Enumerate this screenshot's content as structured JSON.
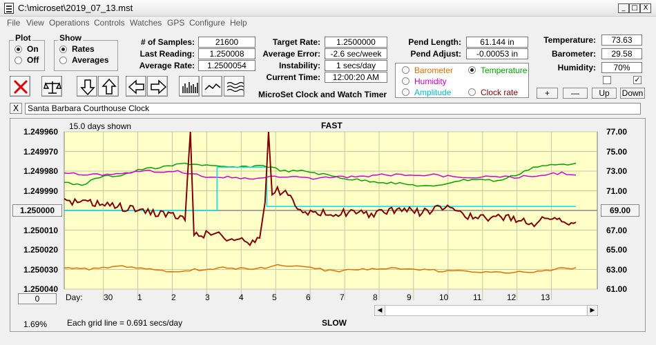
{
  "window": {
    "title": "C:\\microset\\2019_07_13.mst",
    "min_label": "_",
    "max_label": "□",
    "close_label": "X"
  },
  "menu": [
    "File",
    "View",
    "Operations",
    "Controls",
    "Watches",
    "GPS",
    "Configure",
    "Help"
  ],
  "plot": {
    "title": "Plot",
    "on_label": "On",
    "off_label": "Off",
    "selected": "On"
  },
  "show": {
    "title": "Show",
    "rates_label": "Rates",
    "averages_label": "Averages",
    "selected": "Rates"
  },
  "stats": {
    "samples_label": "# of Samples:",
    "samples": "21600",
    "last_reading_label": "Last Reading:",
    "last_reading": "1.250008",
    "average_rate_label": "Average Rate:",
    "average_rate": "1.2500054",
    "target_rate_label": "Target Rate:",
    "target_rate": "1.2500000",
    "average_error_label": "Average Error:",
    "average_error": "-2.6 sec/week",
    "instability_label": "Instability:",
    "instability": "1 secs/day",
    "current_time_label": "Current Time:",
    "current_time": "12:00:20 AM",
    "pend_length_label": "Pend Length:",
    "pend_length": "61.144 in",
    "pend_adjust_label": "Pend Adjust:",
    "pend_adjust": "-0.00053 in",
    "temperature_label": "Temperature:",
    "temperature": "73.63",
    "barometer_label": "Barometer:",
    "barometer": "29.58",
    "humidity_label": "Humidity:",
    "humidity": "70%"
  },
  "app_caption": "MicroSet Clock and Watch Timer",
  "sensor_select": {
    "options": [
      {
        "label": "Barometer",
        "color": "#e07000"
      },
      {
        "label": "Temperature",
        "color": "#00a000"
      },
      {
        "label": "Humidity",
        "color": "#c000c0"
      },
      {
        "label": "Amplitude",
        "color": "#00b8d0"
      },
      {
        "label": "Clock rate",
        "color": "#800000"
      }
    ],
    "selected": "Temperature"
  },
  "adjust_buttons": {
    "plus": "+",
    "minus": "—",
    "up": "Up",
    "down": "Down"
  },
  "checkboxes": {
    "left_checked": false,
    "right_checked": true,
    "check_glyph": "✓"
  },
  "clock": {
    "close_label": "X",
    "name": "Santa Barbara Courthouse Clock"
  },
  "chart_labels": {
    "days_shown": "15.0 days shown",
    "fast": "FAST",
    "slow": "SLOW",
    "grid_note": "Each grid line = 0.691 secs/day",
    "day_prefix": "Day:",
    "center_button": "1.250000",
    "right_button": "69.00",
    "bottom_left_button": "0",
    "percent": "1.69%"
  },
  "chart_data": {
    "type": "line",
    "left_axis_ticks": [
      "1.249960",
      "1.249970",
      "1.249980",
      "1.249990",
      "1.250000",
      "1.250010",
      "1.250020",
      "1.250030",
      "1.250040"
    ],
    "left_ylim": [
      1.24996,
      1.25004
    ],
    "left_axis_reversed": true,
    "right_axis_ticks": [
      "77.00",
      "75.00",
      "73.00",
      "71.00",
      "69.00",
      "67.00",
      "65.00",
      "63.00",
      "61.00"
    ],
    "right_ylim": [
      61,
      77
    ],
    "x_day_ticks": [
      "30",
      "1",
      "2",
      "3",
      "4",
      "5",
      "6",
      "7",
      "8",
      "9",
      "10",
      "11",
      "12",
      "13"
    ],
    "xlim": [
      0,
      15
    ],
    "grid": true,
    "series": [
      {
        "name": "Barometer",
        "color": "#e07000",
        "points": [
          [
            0,
            1.250029
          ],
          [
            0.7,
            1.25003
          ],
          [
            1.5,
            1.250028
          ],
          [
            2.3,
            1.25003
          ],
          [
            3,
            1.250031
          ],
          [
            3.8,
            1.25003
          ],
          [
            4.6,
            1.250029
          ],
          [
            5.3,
            1.25003
          ],
          [
            6,
            1.250028
          ],
          [
            6.8,
            1.250029
          ],
          [
            7.6,
            1.250031
          ],
          [
            8.4,
            1.25003
          ],
          [
            9.2,
            1.250029
          ],
          [
            10,
            1.25003
          ],
          [
            10.8,
            1.250031
          ],
          [
            11.6,
            1.250031
          ],
          [
            12.4,
            1.250032
          ],
          [
            13.2,
            1.250031
          ],
          [
            14.4,
            1.250029
          ]
        ]
      },
      {
        "name": "Temperature",
        "color": "#00a000",
        "points": [
          [
            0,
            1.249986
          ],
          [
            0.5,
            1.249987
          ],
          [
            1,
            1.249983
          ],
          [
            1.6,
            1.249982
          ],
          [
            2.2,
            1.249979
          ],
          [
            2.8,
            1.249978
          ],
          [
            3.4,
            1.249976
          ],
          [
            4.0,
            1.249977
          ],
          [
            4.4,
            1.249978
          ],
          [
            5.0,
            1.249978
          ],
          [
            5.6,
            1.249977
          ],
          [
            6.2,
            1.24998
          ],
          [
            6.8,
            1.24998
          ],
          [
            7.4,
            1.249982
          ],
          [
            8.0,
            1.249984
          ],
          [
            8.6,
            1.249985
          ],
          [
            9.2,
            1.249986
          ],
          [
            9.8,
            1.249987
          ],
          [
            10.4,
            1.249988
          ],
          [
            11.0,
            1.249985
          ],
          [
            11.6,
            1.249984
          ],
          [
            12.2,
            1.249985
          ],
          [
            12.7,
            1.249982
          ],
          [
            13.2,
            1.249978
          ],
          [
            13.7,
            1.249977
          ],
          [
            14.4,
            1.249976
          ]
        ]
      },
      {
        "name": "Humidity",
        "color": "#d000d0",
        "points": [
          [
            0,
            1.249981
          ],
          [
            0.8,
            1.249982
          ],
          [
            1.6,
            1.249981
          ],
          [
            2.4,
            1.24998
          ],
          [
            3.2,
            1.24998
          ],
          [
            4,
            1.249983
          ],
          [
            4.6,
            1.249983
          ],
          [
            5.2,
            1.249984
          ],
          [
            5.8,
            1.249983
          ],
          [
            6.4,
            1.249983
          ],
          [
            7.0,
            1.249984
          ],
          [
            7.6,
            1.249983
          ],
          [
            8.2,
            1.249983
          ],
          [
            8.8,
            1.249982
          ],
          [
            9.6,
            1.249982
          ],
          [
            10.4,
            1.249982
          ],
          [
            11.2,
            1.249983
          ],
          [
            12,
            1.249983
          ],
          [
            12.8,
            1.249983
          ],
          [
            13.3,
            1.249982
          ],
          [
            14.0,
            1.249981
          ],
          [
            14.4,
            1.249982
          ]
        ]
      },
      {
        "name": "Amplitude",
        "color": "#00e0f0",
        "points": [
          [
            0,
            1.25
          ],
          [
            4.3,
            1.25
          ],
          [
            4.3,
            1.249978
          ],
          [
            5.7,
            1.249978
          ],
          [
            5.7,
            1.249998
          ],
          [
            14.4,
            1.249998
          ]
        ]
      },
      {
        "name": "Clock rate",
        "color": "#800000",
        "points": [
          [
            0,
            1.249996
          ],
          [
            0.6,
            1.249996
          ],
          [
            1,
            1.249997
          ],
          [
            1.5,
            1.249998
          ],
          [
            2,
            1.25
          ],
          [
            2.5,
            1.250001
          ],
          [
            3,
            1.250002
          ],
          [
            3.4,
            1.250005
          ],
          [
            3.55,
            1.249958
          ],
          [
            3.65,
            1.250012
          ],
          [
            4.2,
            1.250012
          ],
          [
            4.35,
            1.250011
          ],
          [
            4.5,
            1.250014
          ],
          [
            5,
            1.250015
          ],
          [
            5.3,
            1.250016
          ],
          [
            5.5,
            1.250014
          ],
          [
            5.65,
            1.249996
          ],
          [
            5.75,
            1.249958
          ],
          [
            5.85,
            1.249992
          ],
          [
            6,
            1.24999
          ],
          [
            6.3,
            1.249991
          ],
          [
            6.5,
            1.249997
          ],
          [
            7,
            1.250002
          ],
          [
            7.5,
            1.250001
          ],
          [
            8,
            1.250001
          ],
          [
            8.5,
            1.250002
          ],
          [
            9,
            1.250001
          ],
          [
            9.5,
            1.249999
          ],
          [
            10,
            1.250001
          ],
          [
            10.5,
            1.249999
          ],
          [
            11,
            1.249999
          ],
          [
            11.5,
            1.250004
          ],
          [
            12,
            1.250004
          ],
          [
            12.5,
            1.250004
          ],
          [
            13,
            1.250005
          ],
          [
            13.3,
            1.250007
          ],
          [
            13.6,
            1.250003
          ],
          [
            14.0,
            1.250005
          ],
          [
            14.4,
            1.250006
          ]
        ]
      }
    ]
  }
}
